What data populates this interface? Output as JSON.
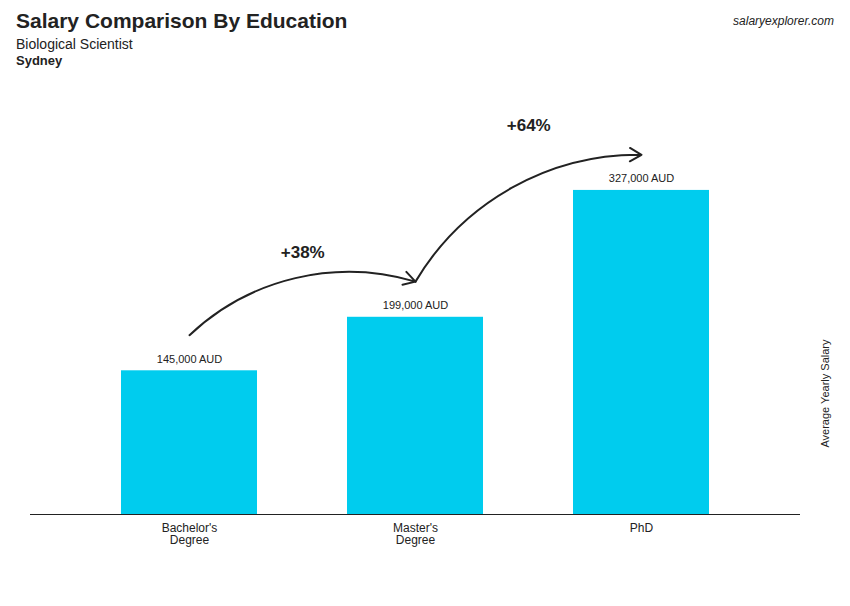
{
  "chart_data": {
    "type": "bar",
    "title": "Salary Comparison By Education",
    "subtitle": "Biological Scientist",
    "ylabel": "Average Yearly Salary",
    "categories": [
      "Bachelor's\nDegree",
      "Master's\nDegree",
      "PhD"
    ],
    "values": [
      145000,
      199000,
      327000
    ],
    "value_labels": [
      "145,000 AUD",
      "199,000 AUD",
      "327,000 AUD"
    ],
    "color": "#00ccee",
    "ylim": [
      0,
      353160
    ],
    "data_labels": true,
    "tick_labels": "x",
    "annotations": [
      {
        "text": "Sydney"
      },
      {
        "text": "salaryexplorer.com"
      },
      {
        "text": "+38%",
        "from": "Bachelor's\nDegree",
        "to": "Master's\nDegree"
      },
      {
        "text": "+64%",
        "from": "Master's\nDegree",
        "to": "PhD"
      }
    ]
  }
}
